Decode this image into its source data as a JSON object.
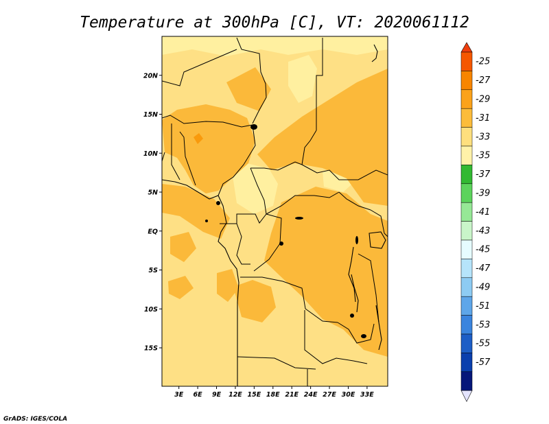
{
  "title": "Temperature at 300hPa [C], VT: 2020061112",
  "footer": "GrADS: IGES/COLA",
  "map": {
    "lon_range": [
      0,
      36
    ],
    "lat_range": [
      -20,
      25
    ],
    "lat_ticks": [
      {
        "value": 20,
        "label": "20N"
      },
      {
        "value": 15,
        "label": "15N"
      },
      {
        "value": 10,
        "label": "10N"
      },
      {
        "value": 5,
        "label": "5N"
      },
      {
        "value": 0,
        "label": "EQ"
      },
      {
        "value": -5,
        "label": "5S"
      },
      {
        "value": -10,
        "label": "10S"
      },
      {
        "value": -15,
        "label": "15S"
      }
    ],
    "lon_ticks": [
      {
        "value": 3,
        "label": "3E"
      },
      {
        "value": 6,
        "label": "6E"
      },
      {
        "value": 9,
        "label": "9E"
      },
      {
        "value": 12,
        "label": "12E"
      },
      {
        "value": 15,
        "label": "15E"
      },
      {
        "value": 18,
        "label": "18E"
      },
      {
        "value": 21,
        "label": "21E"
      },
      {
        "value": 24,
        "label": "24E"
      },
      {
        "value": 27,
        "label": "27E"
      },
      {
        "value": 30,
        "label": "30E"
      },
      {
        "value": 33,
        "label": "33E"
      }
    ],
    "fill_colors": {
      "range_35_33": "#fff0a0",
      "range_33_31": "#fee085",
      "range_31_29": "#fbb93a",
      "range_29_27": "#f99a0c"
    }
  },
  "legend": {
    "labels": [
      "-25",
      "-27",
      "-29",
      "-31",
      "-33",
      "-35",
      "-37",
      "-39",
      "-41",
      "-43",
      "-45",
      "-47",
      "-49",
      "-51",
      "-53",
      "-55",
      "-57"
    ],
    "top_color": "#ee3e0e",
    "bottom_color": "#e4e4ff",
    "colors": [
      "#f55700",
      "#f88500",
      "#fba21a",
      "#fcbc3a",
      "#fedf7e",
      "#fff2a9",
      "#32b932",
      "#5cd35c",
      "#96e896",
      "#c9f5c9",
      "#e6fcff",
      "#b6e4fb",
      "#8dcbf3",
      "#5ea6e9",
      "#3a84de",
      "#1d5ec6",
      "#0a3fad",
      "#06177a"
    ]
  }
}
